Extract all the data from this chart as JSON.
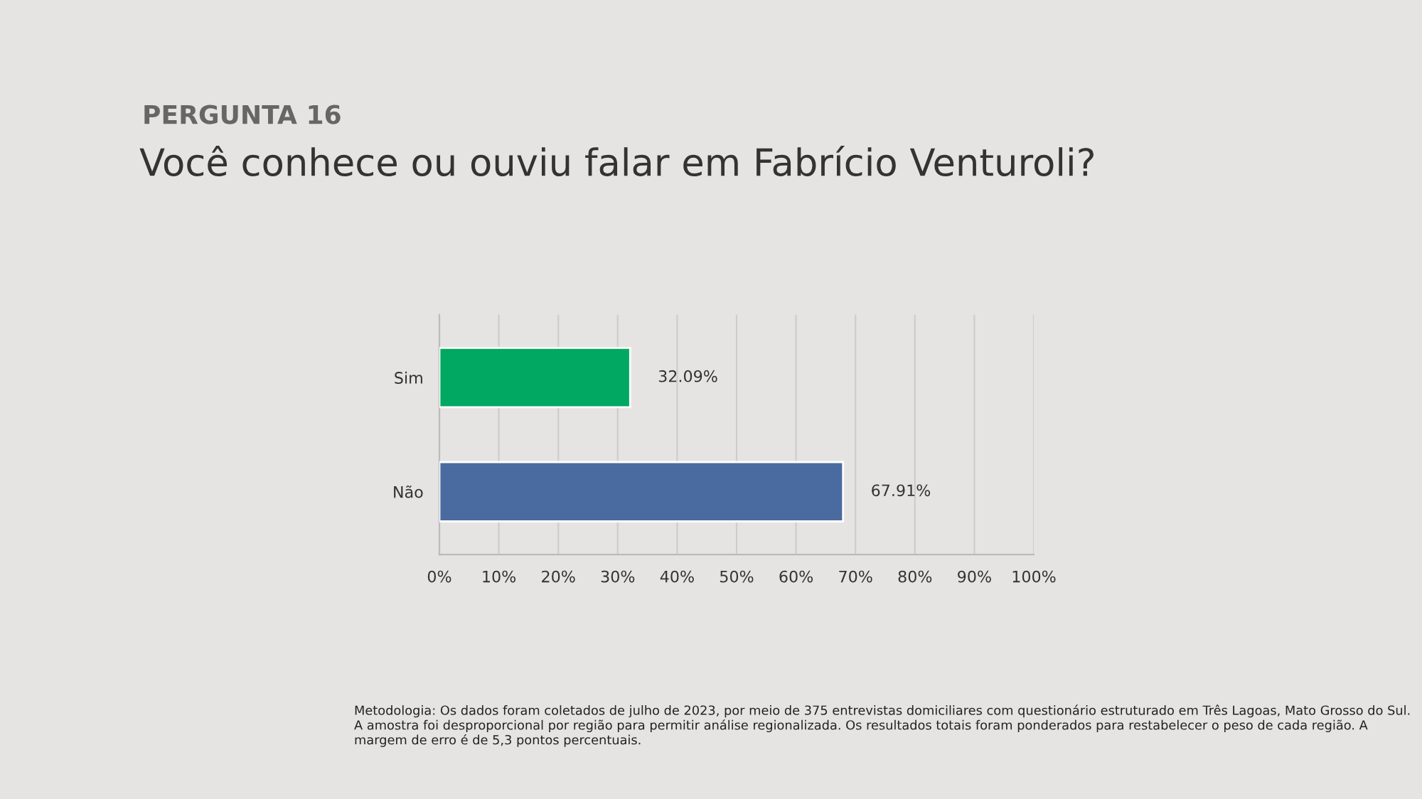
{
  "chart_data": {
    "type": "bar",
    "orientation": "horizontal",
    "subtitle": "PERGUNTA 16",
    "title": "Você conhece ou ouviu falar em Fabrício Venturoli?",
    "categories": [
      "Sim",
      "Não"
    ],
    "values": [
      32.09,
      67.91
    ],
    "colors": [
      "#00a862",
      "#4a6ba0"
    ],
    "value_labels": [
      "32.09%",
      "67.91%"
    ],
    "xlim": [
      0,
      100
    ],
    "xticks": [
      {
        "value": 0,
        "label": "0%"
      },
      {
        "value": 10,
        "label": "10%"
      },
      {
        "value": 20,
        "label": "20%"
      },
      {
        "value": 30,
        "label": "30%"
      },
      {
        "value": 40,
        "label": "40%"
      },
      {
        "value": 50,
        "label": "50%"
      },
      {
        "value": 60,
        "label": "60%"
      },
      {
        "value": 70,
        "label": "70%"
      },
      {
        "value": 80,
        "label": "80%"
      },
      {
        "value": 90,
        "label": "90%"
      },
      {
        "value": 100,
        "label": "100%"
      }
    ],
    "grid": "x",
    "annotations": [
      "Metodologia: Os dados foram coletados de julho de 2023, por meio de 375 entrevistas domiciliares com questionário estruturado em Três Lagoas, Mato Grosso do Sul. A amostra foi desproporcional por região para permitir análise regionalizada. Os resultados totais foram ponderados para restabelecer o peso de cada região. A margem de erro é de 5,3 pontos percentuais."
    ]
  }
}
